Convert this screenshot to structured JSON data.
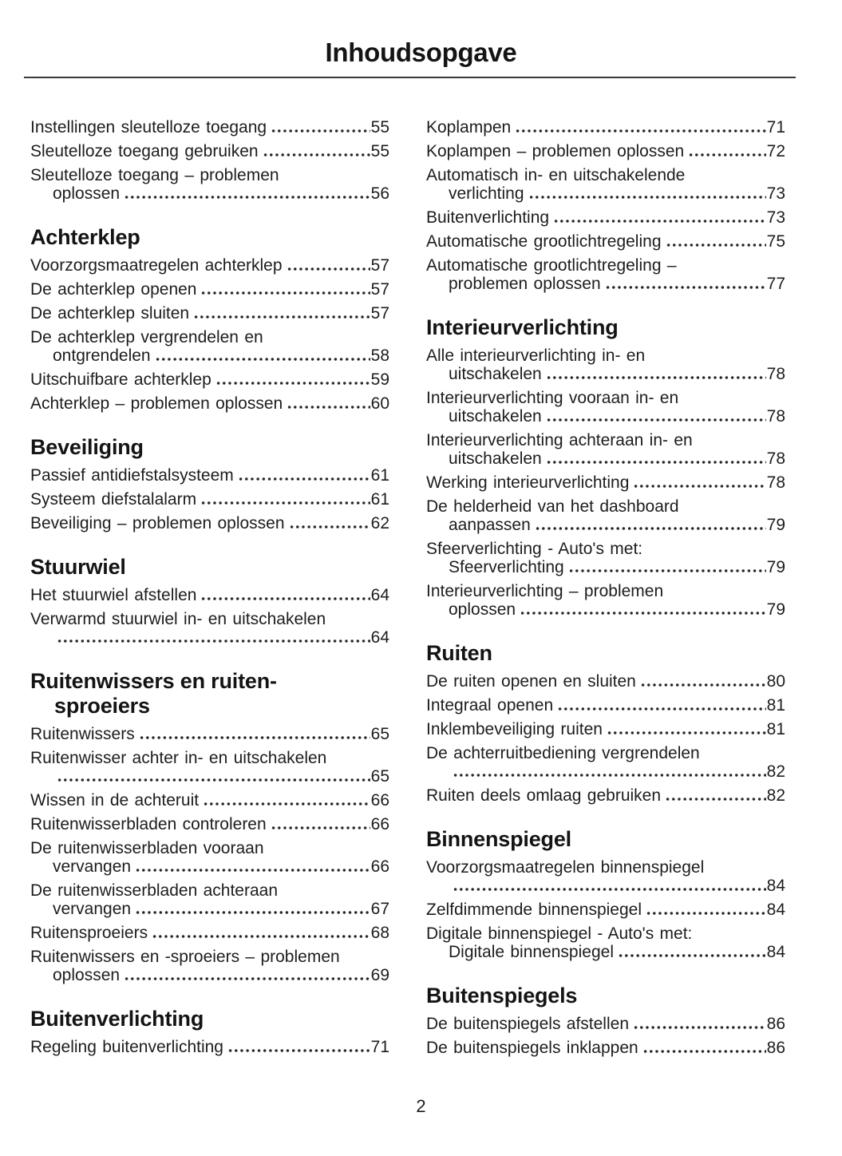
{
  "page": {
    "title": "Inhoudsopgave",
    "footer_page_number": "2"
  },
  "toc": {
    "columns": [
      {
        "blocks": [
          {
            "header": null,
            "entries": [
              {
                "lines": [
                  "Instellingen sleutelloze toegang"
                ],
                "page": "55"
              },
              {
                "lines": [
                  "Sleutelloze toegang gebruiken"
                ],
                "page": "55"
              },
              {
                "lines": [
                  "Sleutelloze toegang – problemen",
                  "oplossen"
                ],
                "page": "56"
              }
            ]
          },
          {
            "header": "Achterklep",
            "entries": [
              {
                "lines": [
                  "Voorzorgsmaatregelen achterklep"
                ],
                "page": "57"
              },
              {
                "lines": [
                  "De achterklep openen"
                ],
                "page": "57"
              },
              {
                "lines": [
                  "De achterklep sluiten"
                ],
                "page": "57"
              },
              {
                "lines": [
                  "De achterklep vergrendelen en",
                  "ontgrendelen"
                ],
                "page": "58"
              },
              {
                "lines": [
                  "Uitschuifbare achterklep"
                ],
                "page": "59"
              },
              {
                "lines": [
                  "Achterklep – problemen oplossen"
                ],
                "page": "60"
              }
            ]
          },
          {
            "header": "Beveiliging",
            "entries": [
              {
                "lines": [
                  "Passief antidiefstalsysteem"
                ],
                "page": "61"
              },
              {
                "lines": [
                  "Systeem diefstalalarm"
                ],
                "page": "61"
              },
              {
                "lines": [
                  "Beveiliging – problemen oplossen"
                ],
                "page": "62"
              }
            ]
          },
          {
            "header": "Stuurwiel",
            "entries": [
              {
                "lines": [
                  "Het stuurwiel afstellen"
                ],
                "page": "64"
              },
              {
                "lines": [
                  "Verwarmd stuurwiel in- en uitschakelen",
                  ""
                ],
                "page": "64"
              }
            ]
          },
          {
            "header": "Ruitenwissers en ruiten-\nsproeiers",
            "entries": [
              {
                "lines": [
                  "Ruitenwissers"
                ],
                "page": "65"
              },
              {
                "lines": [
                  "Ruitenwisser achter in- en uitschakelen",
                  ""
                ],
                "page": "65"
              },
              {
                "lines": [
                  "Wissen in de achteruit"
                ],
                "page": "66"
              },
              {
                "lines": [
                  "Ruitenwisserbladen controleren"
                ],
                "page": "66"
              },
              {
                "lines": [
                  "De ruitenwisserbladen vooraan",
                  "vervangen"
                ],
                "page": "66"
              },
              {
                "lines": [
                  "De ruitenwisserbladen achteraan",
                  "vervangen"
                ],
                "page": "67"
              },
              {
                "lines": [
                  "Ruitensproeiers"
                ],
                "page": "68"
              },
              {
                "lines": [
                  "Ruitenwissers en -sproeiers – problemen",
                  "oplossen"
                ],
                "page": "69"
              }
            ]
          },
          {
            "header": "Buitenverlichting",
            "entries": [
              {
                "lines": [
                  "Regeling buitenverlichting"
                ],
                "page": "71"
              }
            ]
          }
        ]
      },
      {
        "blocks": [
          {
            "header": null,
            "entries": [
              {
                "lines": [
                  "Koplampen"
                ],
                "page": "71"
              },
              {
                "lines": [
                  "Koplampen – problemen oplossen"
                ],
                "page": "72"
              },
              {
                "lines": [
                  "Automatisch in- en uitschakelende",
                  "verlichting"
                ],
                "page": "73"
              },
              {
                "lines": [
                  "Buitenverlichting"
                ],
                "page": "73"
              },
              {
                "lines": [
                  "Automatische grootlichtregeling"
                ],
                "page": "75"
              },
              {
                "lines": [
                  "Automatische grootlichtregeling –",
                  "problemen oplossen"
                ],
                "page": "77"
              }
            ]
          },
          {
            "header": "Interieurverlichting",
            "entries": [
              {
                "lines": [
                  "Alle interieurverlichting in- en",
                  "uitschakelen"
                ],
                "page": "78"
              },
              {
                "lines": [
                  "Interieurverlichting vooraan in- en",
                  "uitschakelen"
                ],
                "page": "78"
              },
              {
                "lines": [
                  "Interieurverlichting achteraan in- en",
                  "uitschakelen"
                ],
                "page": "78"
              },
              {
                "lines": [
                  "Werking interieurverlichting"
                ],
                "page": "78"
              },
              {
                "lines": [
                  "De helderheid van het dashboard",
                  "aanpassen"
                ],
                "page": "79"
              },
              {
                "lines": [
                  "Sfeerverlichting - Auto's met:",
                  "Sfeerverlichting"
                ],
                "page": "79"
              },
              {
                "lines": [
                  "Interieurverlichting – problemen",
                  "oplossen"
                ],
                "page": "79"
              }
            ]
          },
          {
            "header": "Ruiten",
            "entries": [
              {
                "lines": [
                  "De ruiten openen en sluiten"
                ],
                "page": "80"
              },
              {
                "lines": [
                  "Integraal openen"
                ],
                "page": "81"
              },
              {
                "lines": [
                  "Inklembeveiliging ruiten"
                ],
                "page": "81"
              },
              {
                "lines": [
                  "De achterruitbediening vergrendelen",
                  ""
                ],
                "page": "82"
              },
              {
                "lines": [
                  "Ruiten deels omlaag gebruiken"
                ],
                "page": "82"
              }
            ]
          },
          {
            "header": "Binnenspiegel",
            "entries": [
              {
                "lines": [
                  "Voorzorgsmaatregelen binnenspiegel",
                  ""
                ],
                "page": "84"
              },
              {
                "lines": [
                  "Zelfdimmende binnenspiegel"
                ],
                "page": "84"
              },
              {
                "lines": [
                  "Digitale binnenspiegel - Auto's met:",
                  "Digitale binnenspiegel"
                ],
                "page": "84"
              }
            ]
          },
          {
            "header": "Buitenspiegels",
            "entries": [
              {
                "lines": [
                  "De buitenspiegels afstellen"
                ],
                "page": "86"
              },
              {
                "lines": [
                  "De buitenspiegels inklappen"
                ],
                "page": "86"
              }
            ]
          }
        ]
      }
    ]
  }
}
